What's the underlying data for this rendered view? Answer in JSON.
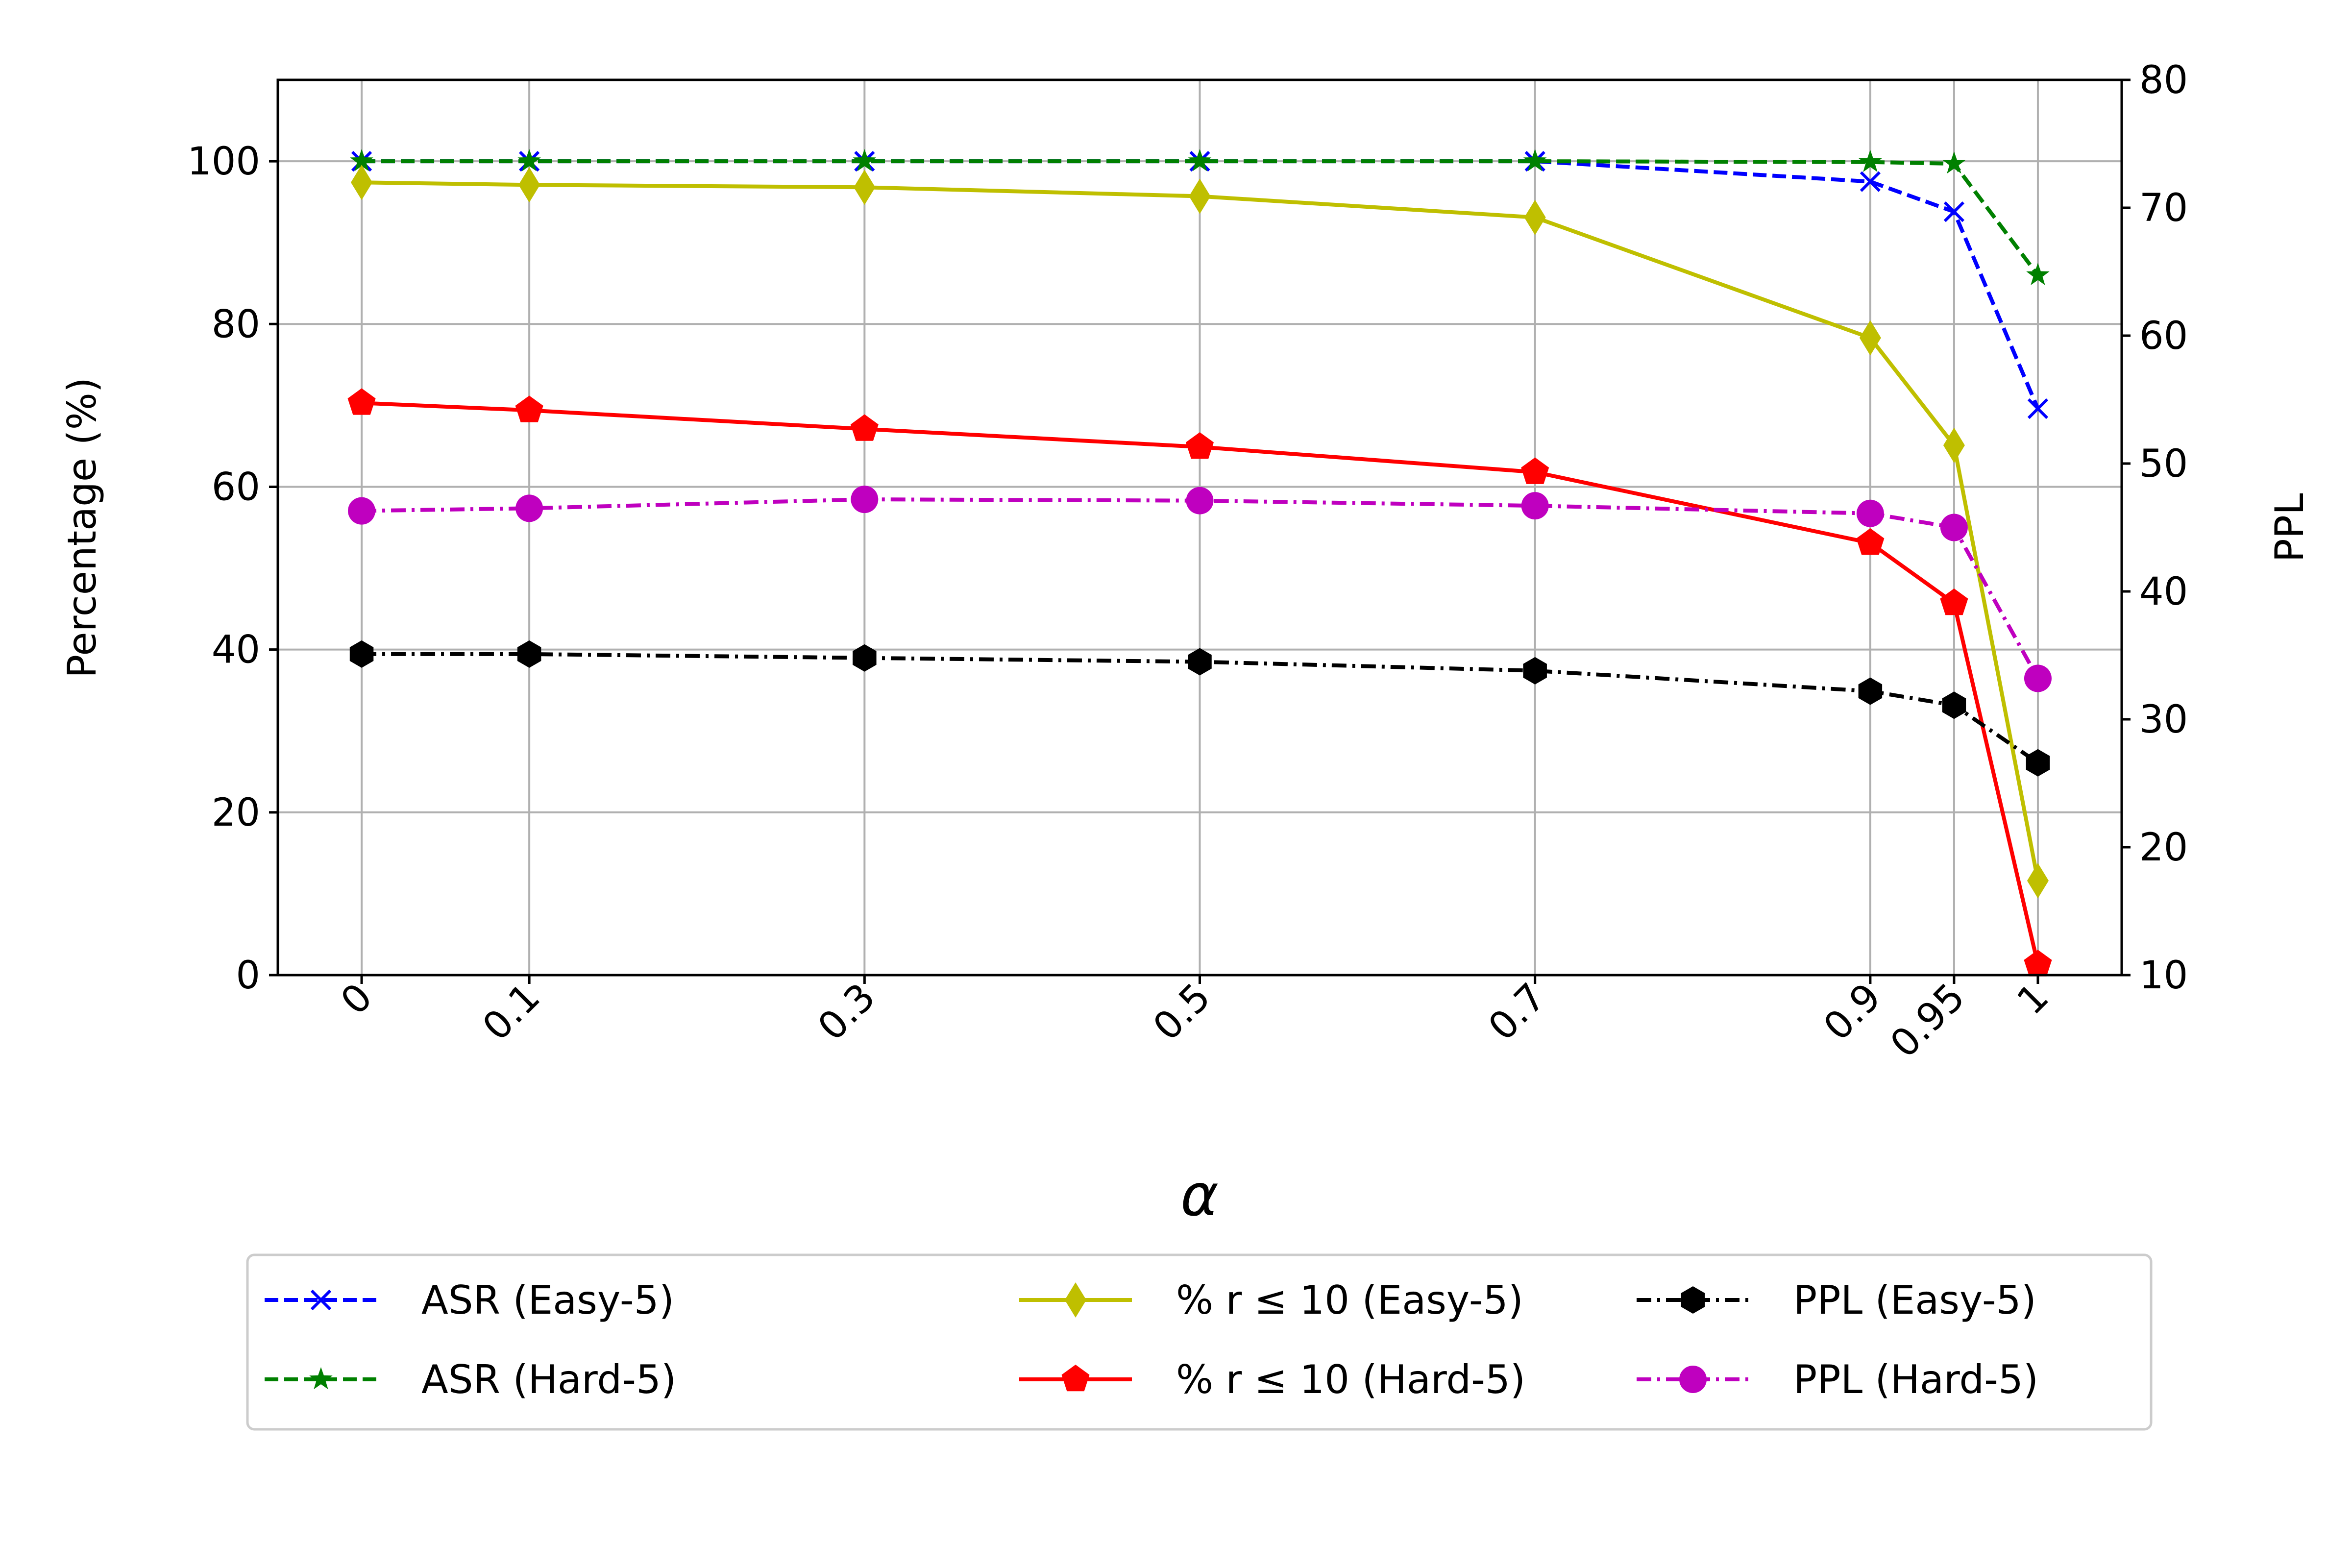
{
  "chart_data": {
    "type": "line",
    "title": "",
    "xlabel": "α",
    "ylabel_left": "Percentage (%)",
    "ylabel_right": "PPL",
    "x": [
      0,
      0.1,
      0.3,
      0.5,
      0.7,
      0.9,
      0.95,
      1
    ],
    "x_tick_labels": [
      "0",
      "0.1",
      "0.3",
      "0.5",
      "0.7",
      "0.9",
      "0.95",
      "1"
    ],
    "xlim": [
      -0.05,
      1.05
    ],
    "ylim_left": [
      0,
      110
    ],
    "ylim_right": [
      10,
      80
    ],
    "y_ticks_left": [
      0,
      20,
      40,
      60,
      80,
      100
    ],
    "y_ticks_right": [
      10,
      20,
      30,
      40,
      50,
      60,
      70,
      80
    ],
    "grid": true,
    "legend_position": "below",
    "series": [
      {
        "name": "ASR (Easy-5)",
        "axis": "left",
        "color": "#0000ff",
        "dash": "dashed",
        "marker": "x",
        "values": [
          100,
          100,
          100,
          100,
          100,
          97.5,
          93.8,
          69.6
        ]
      },
      {
        "name": "ASR (Hard-5)",
        "axis": "left",
        "color": "#008000",
        "dash": "dashed",
        "marker": "star",
        "values": [
          100,
          100,
          100,
          100,
          100,
          99.9,
          99.7,
          86.0
        ]
      },
      {
        "name": "% r ≤ 10 (Easy-5)",
        "axis": "left",
        "color": "#bfbf00",
        "dash": "solid",
        "marker": "thin_diamond",
        "values": [
          97.4,
          97.1,
          96.8,
          95.7,
          93.1,
          78.3,
          65.1,
          11.6
        ]
      },
      {
        "name": "% r ≤ 10 (Hard-5)",
        "axis": "left",
        "color": "#ff0000",
        "dash": "solid",
        "marker": "pentagon",
        "values": [
          70.3,
          69.4,
          67.1,
          64.9,
          61.8,
          53.1,
          45.7,
          1.3
        ]
      },
      {
        "name": "PPL (Easy-5)",
        "axis": "right",
        "color": "#000000",
        "dash": "dashdot",
        "marker": "hexagon",
        "values": [
          35.1,
          35.1,
          34.8,
          34.5,
          33.8,
          32.2,
          31.1,
          26.6
        ]
      },
      {
        "name": "PPL (Hard-5)",
        "axis": "right",
        "color": "#bf00bf",
        "dash": "dashdot",
        "marker": "circle",
        "values": [
          46.3,
          46.5,
          47.2,
          47.1,
          46.7,
          46.1,
          45.0,
          33.2
        ]
      }
    ]
  }
}
